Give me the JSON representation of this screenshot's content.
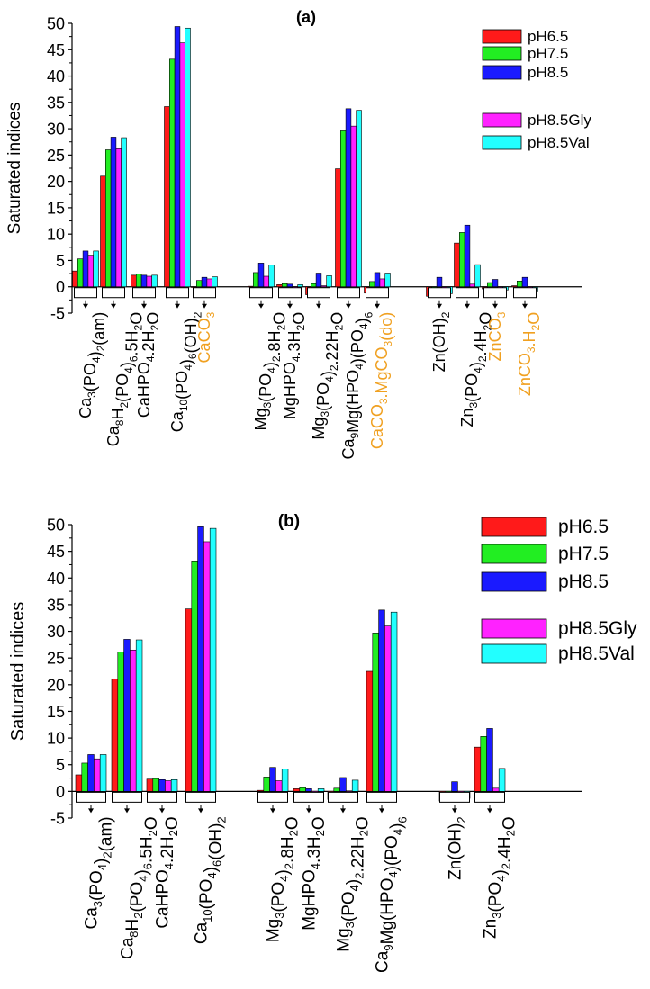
{
  "colors": {
    "pH6.5": "#ff1a1a",
    "pH7.5": "#22ee22",
    "pH8.5": "#1a1aff",
    "pH8.5Gly": "#ff22ff",
    "pH8.5Val": "#22ffff",
    "mineral_highlight": "#f0a020",
    "bar_outline": "#000000"
  },
  "chart_data": [
    {
      "type": "bar",
      "panel_label": "(a)",
      "ylabel": "Saturated indices",
      "ylim": [
        -5,
        50
      ],
      "yticks": [
        "-5",
        "0",
        "5",
        "10",
        "15",
        "20",
        "25",
        "30",
        "35",
        "40",
        "45",
        "50"
      ],
      "legend": [
        "pH6.5",
        "pH7.5",
        "pH8.5",
        "pH8.5Gly",
        "pH8.5Val"
      ],
      "legend_placement": "top-right",
      "series_names": [
        "pH6.5",
        "pH7.5",
        "pH8.5",
        "pH8.5Gly",
        "pH8.5Val"
      ],
      "categories": [
        {
          "label": "Ca3(PO4)2(am)",
          "display": [
            [
              "Ca",
              ""
            ],
            [
              "3",
              "sub"
            ],
            [
              "(PO",
              ""
            ],
            [
              "4",
              "sub"
            ],
            [
              ")",
              ""
            ],
            [
              "2",
              "sub"
            ],
            [
              "(am)",
              ""
            ]
          ],
          "values": [
            3.0,
            5.3,
            6.8,
            6.0,
            6.8
          ]
        },
        {
          "label": "Ca8H2(PO4)6.5H2O",
          "display": [
            [
              "Ca",
              ""
            ],
            [
              "8",
              "sub"
            ],
            [
              "H",
              ""
            ],
            [
              "2",
              "sub"
            ],
            [
              "(PO",
              ""
            ],
            [
              "4",
              "sub"
            ],
            [
              ")",
              ""
            ],
            [
              "6",
              "sub"
            ],
            [
              ".5H",
              ""
            ],
            [
              "2",
              "sub"
            ],
            [
              "O",
              ""
            ]
          ],
          "values": [
            21.0,
            26.0,
            28.4,
            26.2,
            28.3
          ]
        },
        {
          "label": "CaHPO4.2H2O",
          "display": [
            [
              "CaHPO",
              ""
            ],
            [
              "4",
              "sub"
            ],
            [
              ".2H",
              ""
            ],
            [
              "2",
              "sub"
            ],
            [
              "O",
              ""
            ]
          ],
          "values": [
            2.2,
            2.4,
            2.2,
            2.0,
            2.2
          ]
        },
        {
          "label": "Ca10(PO4)6(OH)2",
          "display": [
            [
              "Ca",
              ""
            ],
            [
              "10",
              "sub"
            ],
            [
              "(PO",
              ""
            ],
            [
              "4",
              "sub"
            ],
            [
              ")",
              ""
            ],
            [
              "6",
              "sub"
            ],
            [
              "(OH)",
              ""
            ],
            [
              "2",
              "sub"
            ]
          ],
          "values": [
            34.2,
            43.2,
            49.4,
            46.3,
            49.1
          ]
        },
        {
          "label": "CaCO3",
          "display": [
            [
              "CaCO",
              ""
            ],
            [
              "3",
              "sub"
            ]
          ],
          "highlight": true,
          "values": [
            0.0,
            1.2,
            1.8,
            1.5,
            1.9
          ]
        },
        {
          "label": "Mg3(PO4)2.8H2O",
          "display": [
            [
              "Mg",
              ""
            ],
            [
              "3",
              "sub"
            ],
            [
              "(PO",
              ""
            ],
            [
              "4",
              "sub"
            ],
            [
              ")",
              ""
            ],
            [
              "2",
              "sub"
            ],
            [
              ".8H",
              ""
            ],
            [
              "2",
              "sub"
            ],
            [
              "O",
              ""
            ]
          ],
          "values": [
            0.1,
            2.7,
            4.5,
            2.0,
            4.1
          ]
        },
        {
          "label": "MgHPO4.3H2O",
          "display": [
            [
              "MgHPO",
              ""
            ],
            [
              "4",
              "sub"
            ],
            [
              ".3H",
              ""
            ],
            [
              "2",
              "sub"
            ],
            [
              "O",
              ""
            ]
          ],
          "values": [
            0.4,
            0.6,
            0.5,
            -0.3,
            0.4
          ]
        },
        {
          "label": "Mg3(PO4)2.22H2O",
          "display": [
            [
              "Mg",
              ""
            ],
            [
              "3",
              "sub"
            ],
            [
              "(PO",
              ""
            ],
            [
              "4",
              "sub"
            ],
            [
              ")",
              ""
            ],
            [
              "2",
              "sub"
            ],
            [
              ".22H",
              ""
            ],
            [
              "2",
              "sub"
            ],
            [
              "O",
              ""
            ]
          ],
          "values": [
            -1.5,
            0.6,
            2.6,
            0.2,
            2.1
          ]
        },
        {
          "label": "Ca9Mg(HPO4)(PO4)6",
          "display": [
            [
              "Ca",
              ""
            ],
            [
              "9",
              "sub"
            ],
            [
              "Mg(HPO",
              ""
            ],
            [
              "4",
              "sub"
            ],
            [
              ")(PO",
              ""
            ],
            [
              "4",
              "sub"
            ],
            [
              ")",
              ""
            ],
            [
              "6",
              "sub"
            ]
          ],
          "values": [
            22.4,
            29.6,
            33.8,
            30.5,
            33.5
          ]
        },
        {
          "label": "CaCO3.MgCO3(do)",
          "display": [
            [
              "CaCO",
              ""
            ],
            [
              "3",
              "sub"
            ],
            [
              ".MgCO",
              ""
            ],
            [
              "3",
              "sub"
            ],
            [
              "(do)",
              ""
            ]
          ],
          "highlight": true,
          "values": [
            -1.2,
            1.0,
            2.7,
            1.5,
            2.6
          ]
        },
        {
          "label": "Zn(OH)2",
          "display": [
            [
              "Zn(OH)",
              ""
            ],
            [
              "2",
              "sub"
            ]
          ],
          "values": [
            -1.8,
            -1.2,
            1.8,
            -1.8,
            -1.3
          ]
        },
        {
          "label": "Zn3(PO4)2.4H2O",
          "display": [
            [
              "Zn",
              ""
            ],
            [
              "3",
              "sub"
            ],
            [
              "(PO",
              ""
            ],
            [
              "4",
              "sub"
            ],
            [
              ")",
              ""
            ],
            [
              "2",
              "sub"
            ],
            [
              ".4H",
              ""
            ],
            [
              "2",
              "sub"
            ],
            [
              "O",
              ""
            ]
          ],
          "values": [
            8.3,
            10.3,
            11.7,
            0.5,
            4.2
          ]
        },
        {
          "label": "ZnCO3",
          "display": [
            [
              "ZnCO",
              ""
            ],
            [
              "3",
              "sub"
            ]
          ],
          "highlight": true,
          "values": [
            -0.4,
            0.8,
            1.4,
            -0.7,
            -0.6
          ]
        },
        {
          "label": "ZnCO3.H2O",
          "display": [
            [
              "ZnCO",
              ""
            ],
            [
              "3",
              "sub"
            ],
            [
              ".H",
              ""
            ],
            [
              "2",
              "sub"
            ],
            [
              "O",
              ""
            ]
          ],
          "highlight": true,
          "values": [
            0.2,
            1.1,
            1.8,
            -1.3,
            -0.8
          ]
        }
      ]
    },
    {
      "type": "bar",
      "panel_label": "(b)",
      "ylabel": "Saturated indices",
      "ylim": [
        -5,
        50
      ],
      "yticks": [
        "-5",
        "0",
        "5",
        "10",
        "15",
        "20",
        "25",
        "30",
        "35",
        "40",
        "45",
        "50"
      ],
      "legend": [
        "pH6.5",
        "pH7.5",
        "pH8.5",
        "pH8.5Gly",
        "pH8.5Val"
      ],
      "legend_placement": "top-right",
      "series_names": [
        "pH6.5",
        "pH7.5",
        "pH8.5",
        "pH8.5Gly",
        "pH8.5Val"
      ],
      "categories": [
        {
          "label": "Ca3(PO4)2(am)",
          "display": [
            [
              "Ca",
              ""
            ],
            [
              "3",
              "sub"
            ],
            [
              "(PO",
              ""
            ],
            [
              "4",
              "sub"
            ],
            [
              ")",
              ""
            ],
            [
              "2",
              "sub"
            ],
            [
              "(am)",
              ""
            ]
          ],
          "values": [
            3.1,
            5.3,
            6.9,
            6.1,
            6.9
          ]
        },
        {
          "label": "Ca8H2(PO4)6.5H2O",
          "display": [
            [
              "Ca",
              ""
            ],
            [
              "8",
              "sub"
            ],
            [
              "H",
              ""
            ],
            [
              "2",
              "sub"
            ],
            [
              "(PO",
              ""
            ],
            [
              "4",
              "sub"
            ],
            [
              ")",
              ""
            ],
            [
              "6",
              "sub"
            ],
            [
              ".5H",
              ""
            ],
            [
              "2",
              "sub"
            ],
            [
              "O",
              ""
            ]
          ],
          "values": [
            21.1,
            26.1,
            28.5,
            26.5,
            28.4
          ]
        },
        {
          "label": "CaHPO4.2H2O",
          "display": [
            [
              "CaHPO",
              ""
            ],
            [
              "4",
              "sub"
            ],
            [
              ".2H",
              ""
            ],
            [
              "2",
              "sub"
            ],
            [
              "O",
              ""
            ]
          ],
          "values": [
            2.3,
            2.4,
            2.2,
            2.0,
            2.2
          ]
        },
        {
          "label": "Ca10(PO4)6(OH)2",
          "display": [
            [
              "Ca",
              ""
            ],
            [
              "10",
              "sub"
            ],
            [
              "(PO",
              ""
            ],
            [
              "4",
              "sub"
            ],
            [
              ")",
              ""
            ],
            [
              "6",
              "sub"
            ],
            [
              "(OH)",
              ""
            ],
            [
              "2",
              "sub"
            ]
          ],
          "values": [
            34.2,
            43.2,
            49.6,
            46.8,
            49.3
          ]
        },
        {
          "label": "Mg3(PO4)2.8H2O",
          "display": [
            [
              "Mg",
              ""
            ],
            [
              "3",
              "sub"
            ],
            [
              "(PO",
              ""
            ],
            [
              "4",
              "sub"
            ],
            [
              ")",
              ""
            ],
            [
              "2",
              "sub"
            ],
            [
              ".8H",
              ""
            ],
            [
              "2",
              "sub"
            ],
            [
              "O",
              ""
            ]
          ],
          "values": [
            0.2,
            2.7,
            4.5,
            2.0,
            4.2
          ]
        },
        {
          "label": "MgHPO4.3H2O",
          "display": [
            [
              "MgHPO",
              ""
            ],
            [
              "4",
              "sub"
            ],
            [
              ".3H",
              ""
            ],
            [
              "2",
              "sub"
            ],
            [
              "O",
              ""
            ]
          ],
          "values": [
            0.5,
            0.7,
            0.5,
            -0.8,
            0.5
          ]
        },
        {
          "label": "Mg3(PO4)2.22H2O",
          "display": [
            [
              "Mg",
              ""
            ],
            [
              "3",
              "sub"
            ],
            [
              "(PO",
              ""
            ],
            [
              "4",
              "sub"
            ],
            [
              ")",
              ""
            ],
            [
              "2",
              "sub"
            ],
            [
              ".22H",
              ""
            ],
            [
              "2",
              "sub"
            ],
            [
              "O",
              ""
            ]
          ],
          "values": [
            -1.5,
            0.6,
            2.6,
            0.1,
            2.1
          ]
        },
        {
          "label": "Ca9Mg(HPO4)(PO4)6",
          "display": [
            [
              "Ca",
              ""
            ],
            [
              "9",
              "sub"
            ],
            [
              "Mg(HPO",
              ""
            ],
            [
              "4",
              "sub"
            ],
            [
              ")(PO",
              ""
            ],
            [
              "4",
              "sub"
            ],
            [
              ")",
              ""
            ],
            [
              "6",
              "sub"
            ]
          ],
          "values": [
            22.5,
            29.7,
            34.0,
            31.0,
            33.6
          ]
        },
        {
          "label": "Zn(OH)2",
          "display": [
            [
              "Zn(OH)",
              ""
            ],
            [
              "2",
              "sub"
            ]
          ],
          "values": [
            -1.8,
            -1.3,
            1.8,
            -1.8,
            -1.3
          ]
        },
        {
          "label": "Zn3(PO4)2.4H2O",
          "display": [
            [
              "Zn",
              ""
            ],
            [
              "3",
              "sub"
            ],
            [
              "(PO",
              ""
            ],
            [
              "4",
              "sub"
            ],
            [
              ")",
              ""
            ],
            [
              "2",
              "sub"
            ],
            [
              ".4H",
              ""
            ],
            [
              "2",
              "sub"
            ],
            [
              "O",
              ""
            ]
          ],
          "values": [
            8.3,
            10.3,
            11.8,
            0.6,
            4.3
          ]
        }
      ]
    }
  ]
}
